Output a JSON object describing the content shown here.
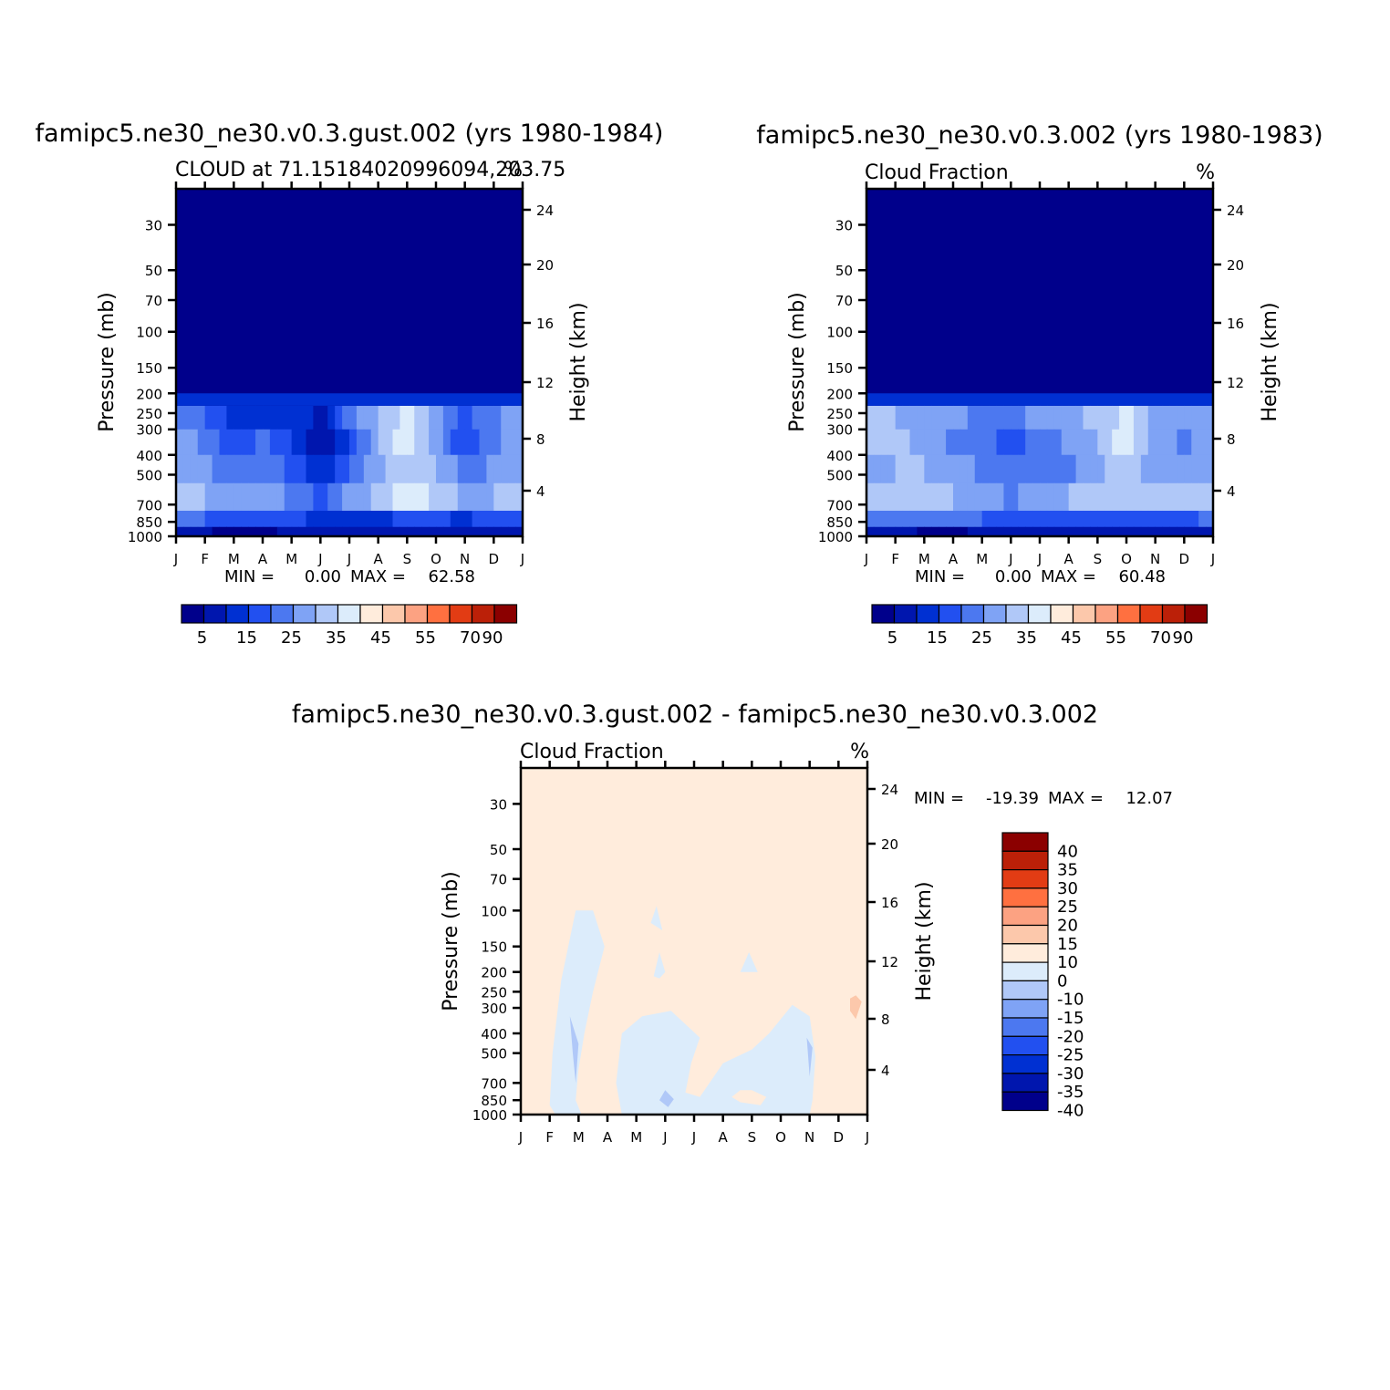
{
  "chart_data": [
    {
      "type": "heatmap",
      "title": "famipc5.ne30_ne30.v0.3.gust.002 (yrs 1980-1984)",
      "left_string": "CLOUD at 71.15184020996094,203.75",
      "right_string": "%",
      "xlabel": "",
      "ylabel": "Pressure (mb)",
      "ylabel_right": "Height (km)",
      "x_ticks": [
        "J",
        "F",
        "M",
        "A",
        "M",
        "J",
        "J",
        "A",
        "S",
        "O",
        "N",
        "D",
        "J"
      ],
      "y_ticks": [
        "30",
        "50",
        "70",
        "100",
        "150",
        "200",
        "250",
        "300",
        "400",
        "500",
        "700",
        "850",
        "1000"
      ],
      "y_ticks_right": [
        "24",
        "20",
        "16",
        "12",
        "8",
        "4"
      ],
      "ylim": [
        1000,
        20
      ],
      "min_max_text": {
        "min_label": "MIN =",
        "min": "0.00",
        "max_label": "MAX =",
        "max": "62.58"
      },
      "colorbar_orientation": "horizontal",
      "colorbar_labels": [
        "5",
        "15",
        "25",
        "35",
        "45",
        "55",
        "70",
        "90"
      ],
      "colors": [
        "#00008b",
        "#0016ae",
        "#0030d2",
        "#2250f0",
        "#4c78f0",
        "#7fa3f5",
        "#b0c8f8",
        "#dcecfb",
        "#ffecdc",
        "#fcc8ab",
        "#fca282",
        "#ff7040",
        "#e23c14",
        "#bb2008",
        "#8b0000"
      ],
      "values": [
        [
          24,
          20,
          12,
          12,
          14,
          8,
          22,
          30,
          36,
          28,
          18,
          24,
          30
        ],
        [
          28,
          24,
          15,
          22,
          16,
          6,
          14,
          30,
          38,
          28,
          14,
          24,
          28
        ],
        [
          30,
          26,
          22,
          25,
          18,
          10,
          20,
          28,
          34,
          30,
          22,
          26,
          30
        ],
        [
          32,
          30,
          28,
          28,
          24,
          18,
          26,
          32,
          38,
          34,
          28,
          30,
          32
        ],
        [
          22,
          20,
          16,
          18,
          16,
          14,
          14,
          14,
          16,
          16,
          14,
          18,
          20
        ],
        [
          8,
          6,
          2,
          4,
          6,
          6,
          8,
          8,
          8,
          8,
          6,
          8,
          8
        ]
      ]
    },
    {
      "type": "heatmap",
      "title": "famipc5.ne30_ne30.v0.3.002 (yrs 1980-1983)",
      "left_string": "Cloud Fraction",
      "right_string": "%",
      "xlabel": "",
      "ylabel": "Pressure (mb)",
      "ylabel_right": "Height (km)",
      "x_ticks": [
        "J",
        "F",
        "M",
        "A",
        "M",
        "J",
        "J",
        "A",
        "S",
        "O",
        "N",
        "D",
        "J"
      ],
      "y_ticks": [
        "30",
        "50",
        "70",
        "100",
        "150",
        "200",
        "250",
        "300",
        "400",
        "500",
        "700",
        "850",
        "1000"
      ],
      "y_ticks_right": [
        "24",
        "20",
        "16",
        "12",
        "8",
        "4"
      ],
      "ylim": [
        1000,
        20
      ],
      "min_max_text": {
        "min_label": "MIN =",
        "min": "0.00",
        "max_label": "MAX =",
        "max": "60.48"
      },
      "colorbar_orientation": "horizontal",
      "colorbar_labels": [
        "5",
        "15",
        "25",
        "35",
        "45",
        "55",
        "70",
        "90"
      ],
      "colors": [
        "#00008b",
        "#0016ae",
        "#0030d2",
        "#2250f0",
        "#4c78f0",
        "#7fa3f5",
        "#b0c8f8",
        "#dcecfb",
        "#ffecdc",
        "#fcc8ab",
        "#fca282",
        "#ff7040",
        "#e23c14",
        "#bb2008",
        "#8b0000"
      ],
      "values": [
        [
          30,
          30,
          26,
          26,
          24,
          24,
          26,
          28,
          32,
          36,
          28,
          26,
          30
        ],
        [
          30,
          32,
          28,
          24,
          22,
          18,
          22,
          26,
          30,
          38,
          28,
          24,
          30
        ],
        [
          28,
          30,
          30,
          28,
          24,
          20,
          22,
          24,
          28,
          34,
          26,
          26,
          28
        ],
        [
          30,
          30,
          30,
          30,
          28,
          24,
          28,
          30,
          34,
          34,
          30,
          30,
          30
        ],
        [
          22,
          22,
          20,
          20,
          20,
          18,
          18,
          18,
          18,
          18,
          16,
          18,
          22
        ],
        [
          8,
          8,
          4,
          4,
          6,
          6,
          8,
          8,
          8,
          8,
          6,
          8,
          8
        ]
      ]
    },
    {
      "type": "heatmap",
      "title": "famipc5.ne30_ne30.v0.3.gust.002 - famipc5.ne30_ne30.v0.3.002",
      "left_string": "Cloud Fraction",
      "right_string": "%",
      "xlabel": "",
      "ylabel": "Pressure (mb)",
      "ylabel_right": "Height (km)",
      "x_ticks": [
        "J",
        "F",
        "M",
        "A",
        "M",
        "J",
        "J",
        "A",
        "S",
        "O",
        "N",
        "D",
        "J"
      ],
      "y_ticks": [
        "30",
        "50",
        "70",
        "100",
        "150",
        "200",
        "250",
        "300",
        "400",
        "500",
        "700",
        "850",
        "1000"
      ],
      "y_ticks_right": [
        "24",
        "20",
        "16",
        "12",
        "8",
        "4"
      ],
      "ylim": [
        1000,
        20
      ],
      "min_max_text": {
        "min_label": "MIN =",
        "min": "-19.39",
        "max_label": "MAX =",
        "max": "12.07"
      },
      "colorbar_orientation": "vertical",
      "colorbar_labels": [
        "40",
        "35",
        "30",
        "25",
        "20",
        "15",
        "10",
        "0",
        "-10",
        "-15",
        "-20",
        "-25",
        "-30",
        "-35",
        "-40"
      ],
      "colors": [
        "#8b0000",
        "#bb2008",
        "#e23c14",
        "#ff7040",
        "#fca282",
        "#fcc8ab",
        "#ffecdc",
        "#dcecfb",
        "#b0c8f8",
        "#7fa3f5",
        "#4c78f0",
        "#2250f0",
        "#0030d2",
        "#0016ae",
        "#00008b"
      ],
      "diff_regions": [
        {
          "level": "-10 to 0",
          "points": [
            [
              1.0,
              900
            ],
            [
              1.1,
              500
            ],
            [
              1.4,
              220
            ],
            [
              1.9,
              100
            ],
            [
              2.3,
              100
            ],
            [
              2.5,
              100
            ],
            [
              2.9,
              150
            ],
            [
              2.5,
              250
            ],
            [
              2.2,
              400
            ],
            [
              2.0,
              600
            ],
            [
              1.9,
              850
            ],
            [
              2.1,
              1000
            ],
            [
              1.2,
              1000
            ]
          ]
        },
        {
          "level": "-10 to 0",
          "points": [
            [
              3.5,
              1000
            ],
            [
              3.3,
              700
            ],
            [
              3.5,
              400
            ],
            [
              4.2,
              330
            ],
            [
              5.2,
              310
            ],
            [
              6.2,
              420
            ],
            [
              5.9,
              560
            ],
            [
              5.7,
              780
            ],
            [
              6.2,
              820
            ],
            [
              7.0,
              560
            ],
            [
              8.0,
              480
            ],
            [
              8.6,
              400
            ],
            [
              9.4,
              290
            ],
            [
              10.0,
              330
            ],
            [
              10.2,
              520
            ],
            [
              10.1,
              850
            ],
            [
              10.0,
              1000
            ]
          ]
        },
        {
          "level": "-10 to 0",
          "points": [
            [
              4.5,
              115
            ],
            [
              4.7,
              95
            ],
            [
              4.9,
              125
            ]
          ]
        },
        {
          "level": "-10 to 0",
          "points": [
            [
              4.6,
              210
            ],
            [
              4.8,
              160
            ],
            [
              5.0,
              200
            ],
            [
              4.8,
              215
            ]
          ]
        },
        {
          "level": "-10 to 0",
          "points": [
            [
              7.6,
              200
            ],
            [
              7.9,
              160
            ],
            [
              8.2,
              200
            ]
          ]
        },
        {
          "level": "-15 to -10",
          "points": [
            [
              1.7,
              330
            ],
            [
              2.0,
              450
            ],
            [
              1.9,
              700
            ],
            [
              1.8,
              500
            ]
          ]
        },
        {
          "level": "-15 to -10",
          "points": [
            [
              4.8,
              850
            ],
            [
              5.0,
              760
            ],
            [
              5.3,
              840
            ],
            [
              5.1,
              920
            ]
          ]
        },
        {
          "level": "-15 to -10",
          "points": [
            [
              9.9,
              420
            ],
            [
              10.1,
              470
            ],
            [
              10.0,
              650
            ]
          ]
        },
        {
          "level": "0 to 10",
          "points": [
            [
              7.3,
              820
            ],
            [
              7.6,
              760
            ],
            [
              8.0,
              760
            ],
            [
              8.5,
              820
            ],
            [
              8.3,
              900
            ],
            [
              7.6,
              870
            ]
          ]
        },
        {
          "level": "10 to 15",
          "points": [
            [
              11.4,
              270
            ],
            [
              11.6,
              260
            ],
            [
              11.8,
              280
            ],
            [
              11.6,
              340
            ],
            [
              11.4,
              310
            ]
          ]
        }
      ]
    }
  ]
}
